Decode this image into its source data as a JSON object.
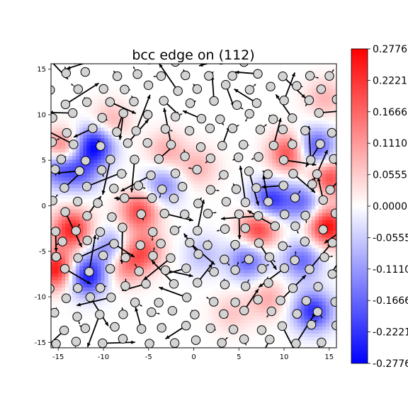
{
  "chart_data": {
    "type": "heatmap",
    "title": "bcc edge on (112)",
    "xlabel": "",
    "ylabel": "",
    "xlim": [
      -15.8,
      15.8
    ],
    "ylim": [
      -15.6,
      15.6
    ],
    "x_ticks": [
      -15,
      -10,
      -5,
      0,
      5,
      10,
      15
    ],
    "y_ticks": [
      -15,
      -10,
      -5,
      0,
      5,
      10,
      15
    ],
    "x_tick_labels": [
      "-15",
      "-10",
      "-5",
      "0",
      "5",
      "10",
      "15"
    ],
    "y_tick_labels": [
      "-15",
      "-10",
      "-5",
      "0",
      "5",
      "10",
      "15"
    ],
    "colorbar": {
      "colormap": "bwr",
      "min": -0.2776,
      "max": 0.2776,
      "ticks": [
        0.2776,
        0.2221,
        0.1666,
        0.111,
        0.0555,
        0.0,
        -0.0555,
        -0.111,
        -0.1666,
        -0.2221,
        -0.2776
      ],
      "tick_labels": [
        "0.2776",
        "0.2221",
        "0.1666",
        "0.1110",
        "0.0555",
        "0.0000",
        "-0.0555",
        "-0.1110",
        "-0.1666",
        "-0.2221",
        "-0.2776"
      ]
    },
    "field_blobs": [
      {
        "x": -14.6,
        "y": 6.0,
        "v": 0.22
      },
      {
        "x": -11.0,
        "y": 6.6,
        "v": -0.27
      },
      {
        "x": -15.0,
        "y": 4.4,
        "v": -0.22
      },
      {
        "x": -12.5,
        "y": 3.8,
        "v": -0.15
      },
      {
        "x": -13.5,
        "y": -2.6,
        "v": 0.24
      },
      {
        "x": -15.2,
        "y": -7.0,
        "v": 0.26
      },
      {
        "x": -11.8,
        "y": -7.7,
        "v": -0.26
      },
      {
        "x": -9.2,
        "y": -4.8,
        "v": -0.14
      },
      {
        "x": -6.0,
        "y": -0.6,
        "v": 0.2
      },
      {
        "x": -5.6,
        "y": -5.0,
        "v": 0.17
      },
      {
        "x": -7.7,
        "y": -6.5,
        "v": 0.14
      },
      {
        "x": -3.4,
        "y": 2.2,
        "v": -0.13
      },
      {
        "x": -3.0,
        "y": 6.0,
        "v": 0.09
      },
      {
        "x": 0.5,
        "y": 4.2,
        "v": 0.08
      },
      {
        "x": -9.2,
        "y": 9.2,
        "v": 0.09
      },
      {
        "x": 10.5,
        "y": 5.8,
        "v": 0.2
      },
      {
        "x": 13.5,
        "y": 6.4,
        "v": -0.2
      },
      {
        "x": 15.0,
        "y": 3.0,
        "v": 0.2
      },
      {
        "x": 8.5,
        "y": 0.6,
        "v": -0.22
      },
      {
        "x": 12.2,
        "y": 0.4,
        "v": -0.16
      },
      {
        "x": 7.2,
        "y": -2.6,
        "v": 0.22
      },
      {
        "x": 14.8,
        "y": -2.3,
        "v": 0.27
      },
      {
        "x": 6.0,
        "y": -6.0,
        "v": -0.17
      },
      {
        "x": 12.0,
        "y": -6.0,
        "v": -0.16
      },
      {
        "x": 13.2,
        "y": -11.6,
        "v": -0.23
      },
      {
        "x": 8.2,
        "y": -10.2,
        "v": 0.09
      },
      {
        "x": 14.5,
        "y": 11.8,
        "v": 0.08
      },
      {
        "x": 4.2,
        "y": -11.8,
        "v": 0.06
      },
      {
        "x": 1.0,
        "y": -5.4,
        "v": -0.07
      }
    ]
  }
}
